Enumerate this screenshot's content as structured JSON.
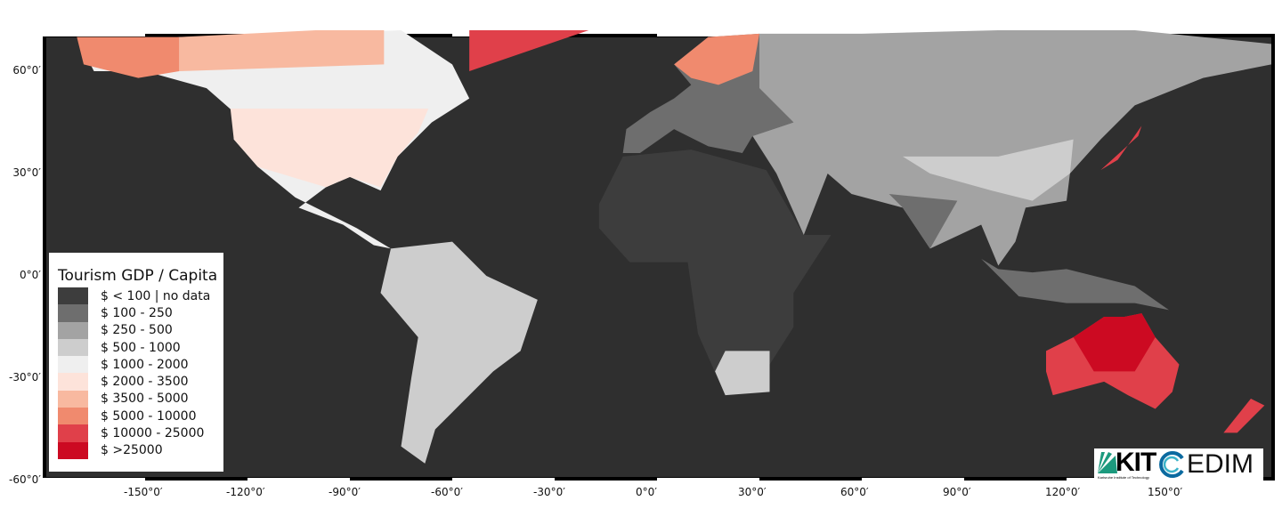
{
  "legend": {
    "title": "Tourism GDP / Capita",
    "items": [
      {
        "label": "$ < 100 | no data",
        "color": "#3d3d3d"
      },
      {
        "label": "$ 100 - 250",
        "color": "#6e6e6e"
      },
      {
        "label": "$ 250 - 500",
        "color": "#a3a3a3"
      },
      {
        "label": "$ 500 - 1000",
        "color": "#cdcdcd"
      },
      {
        "label": "$ 1000 - 2000",
        "color": "#efefef"
      },
      {
        "label": "$ 2000 - 3500",
        "color": "#fde3da"
      },
      {
        "label": "$ 3500 - 5000",
        "color": "#f8b9a0"
      },
      {
        "label": "$ 5000 - 10000",
        "color": "#f08a6e"
      },
      {
        "label": "$ 10000 - 25000",
        "color": "#e0404a"
      },
      {
        "label": "$ >25000",
        "color": "#cc0a22"
      }
    ]
  },
  "axes": {
    "longitude_labels": [
      "-150°0′",
      "-120°0′",
      "-90°0′",
      "-60°0′",
      "-30°0′",
      "0°0′",
      "30°0′",
      "60°0′",
      "90°0′",
      "120°0′",
      "150°0′"
    ],
    "longitude_values": [
      -150,
      -120,
      -90,
      -60,
      -30,
      0,
      30,
      60,
      90,
      120,
      150
    ],
    "latitude_labels": [
      "60°0′",
      "30°0′",
      "0°0′",
      "-30°0′",
      "-60°0′"
    ],
    "latitude_values": [
      60,
      30,
      0,
      -30,
      -60
    ]
  },
  "logos": {
    "kit": "KIT",
    "kit_sub": "Karlsruhe Institute of Technology",
    "cedim": "EDIM"
  },
  "colors": {
    "ocean": "#2f2f2f",
    "frame": "#000000"
  }
}
